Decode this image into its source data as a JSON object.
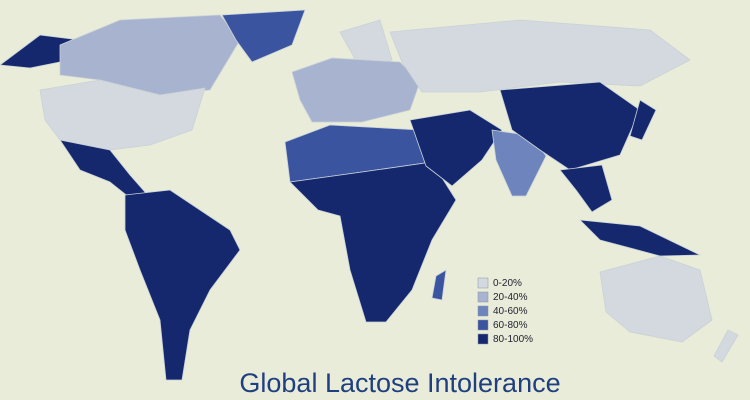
{
  "title": "Global Lactose Intolerance",
  "legend": [
    {
      "label": "0-20%",
      "color": "#d3d9de"
    },
    {
      "label": "20-40%",
      "color": "#a7b3cf"
    },
    {
      "label": "40-60%",
      "color": "#6d84bd"
    },
    {
      "label": "60-80%",
      "color": "#3a54a0"
    },
    {
      "label": "80-100%",
      "color": "#15286e"
    }
  ]
}
